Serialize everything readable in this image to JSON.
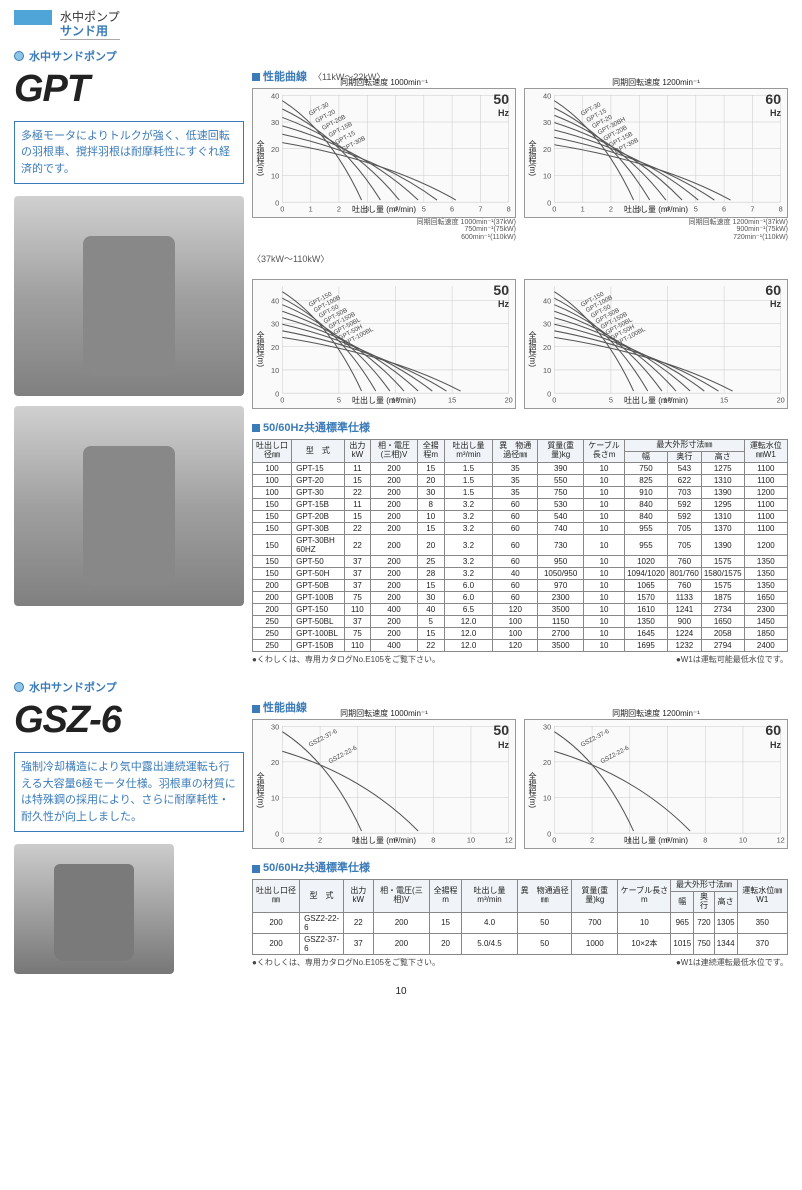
{
  "header": {
    "category": "水中ポンプ",
    "subcategory": "サンド用"
  },
  "gpt": {
    "section_title": "水中サンドポンプ",
    "name": "GPT",
    "description": "多極モータによりトルクが強く、低速回転の羽根車、撹拌羽根は耐摩耗性にすぐれ経済的です。",
    "perf_label": "性能曲線",
    "range1": "〈11kW〜22kW〉",
    "range2": "〈37kW〜110kW〉",
    "spec_label": "50/60Hz共通標準仕様",
    "charts": {
      "r1c1": {
        "freq": "50",
        "hz": "Hz",
        "note": "同期回転速度 1000min⁻¹",
        "ylabel": "全揚程(m)",
        "xlabel": "吐出し量 (m³/min)",
        "curves": [
          "GPT-30",
          "GPT-20",
          "GPT-20B",
          "GPT-15B",
          "GPT-15",
          "GPT-30B"
        ],
        "ymax": 40,
        "xmax": 8,
        "ytick": 10,
        "xtick": 1,
        "bottom_note": "同期回転速度 1000min⁻¹(37kW)\n750min⁻¹(75kW)\n600min⁻¹(110kW)"
      },
      "r1c2": {
        "freq": "60",
        "hz": "Hz",
        "note": "同期回転速度 1200min⁻¹",
        "ylabel": "全揚程(m)",
        "xlabel": "吐出し量 (m³/min)",
        "curves": [
          "GPT-30",
          "GPT-15",
          "GPT-20",
          "GPT-30BH",
          "GPT-20B",
          "GPT-15B",
          "GPT-30B"
        ],
        "ymax": 40,
        "xmax": 8,
        "ytick": 10,
        "xtick": 1,
        "bottom_note": "同期回転速度 1200min⁻¹(37kW)\n900min⁻¹(75kW)\n720min⁻¹(110kW)"
      },
      "r2c1": {
        "freq": "50",
        "hz": "Hz",
        "ylabel": "全揚程(m)",
        "xlabel": "吐出し量 (m³/min)",
        "curves": [
          "GPT-150",
          "GPT-100B",
          "GPT-50",
          "GPT-50B",
          "GPT-150B",
          "GPT-50BL",
          "GPT-50H",
          "GPT-100BL"
        ],
        "ymax": 46,
        "xmax": 20,
        "ytick": 10,
        "xtick": 5
      },
      "r2c2": {
        "freq": "60",
        "hz": "Hz",
        "ylabel": "全揚程(m)",
        "xlabel": "吐出し量 (m³/min)",
        "curves": [
          "GPT-150",
          "GPT-100B",
          "GPT-50",
          "GPT-50B",
          "GPT-150B",
          "GPT-50BL",
          "GPT-50H",
          "GPT-100BL"
        ],
        "ymax": 46,
        "xmax": 20,
        "ytick": 10,
        "xtick": 5
      }
    },
    "table": {
      "headers": [
        "吐出し口径㎜",
        "型　式",
        "出力kW",
        "相・電圧(三相)V",
        "全揚程m",
        "吐出し量m³/min",
        "異　物通過径㎜",
        "質量(重量)kg",
        "ケーブル長さm",
        "幅",
        "奥行",
        "高さ",
        "運転水位㎜W1"
      ],
      "header_group": "最大外形寸法㎜",
      "rows": [
        [
          "100",
          "GPT-15",
          "11",
          "200",
          "15",
          "1.5",
          "35",
          "390",
          "10",
          "750",
          "543",
          "1275",
          "1100"
        ],
        [
          "100",
          "GPT-20",
          "15",
          "200",
          "20",
          "1.5",
          "35",
          "550",
          "10",
          "825",
          "622",
          "1310",
          "1100"
        ],
        [
          "100",
          "GPT-30",
          "22",
          "200",
          "30",
          "1.5",
          "35",
          "750",
          "10",
          "910",
          "703",
          "1390",
          "1200"
        ],
        [
          "150",
          "GPT-15B",
          "11",
          "200",
          "8",
          "3.2",
          "60",
          "530",
          "10",
          "840",
          "592",
          "1295",
          "1100"
        ],
        [
          "150",
          "GPT-20B",
          "15",
          "200",
          "10",
          "3.2",
          "60",
          "540",
          "10",
          "840",
          "592",
          "1310",
          "1100"
        ],
        [
          "150",
          "GPT-30B",
          "22",
          "200",
          "15",
          "3.2",
          "60",
          "740",
          "10",
          "955",
          "705",
          "1370",
          "1100"
        ],
        [
          "150",
          "GPT-30BH 60HZ",
          "22",
          "200",
          "20",
          "3.2",
          "60",
          "730",
          "10",
          "955",
          "705",
          "1390",
          "1200"
        ],
        [
          "150",
          "GPT-50",
          "37",
          "200",
          "25",
          "3.2",
          "60",
          "950",
          "10",
          "1020",
          "760",
          "1575",
          "1350"
        ],
        [
          "150",
          "GPT-50H",
          "37",
          "200",
          "28",
          "3.2",
          "40",
          "1050/950",
          "10",
          "1094/1020",
          "801/760",
          "1580/1575",
          "1350"
        ],
        [
          "200",
          "GPT-50B",
          "37",
          "200",
          "15",
          "6.0",
          "60",
          "970",
          "10",
          "1065",
          "760",
          "1575",
          "1350"
        ],
        [
          "200",
          "GPT-100B",
          "75",
          "200",
          "30",
          "6.0",
          "60",
          "2300",
          "10",
          "1570",
          "1133",
          "1875",
          "1650"
        ],
        [
          "200",
          "GPT-150",
          "110",
          "400",
          "40",
          "6.5",
          "120",
          "3500",
          "10",
          "1610",
          "1241",
          "2734",
          "2300"
        ],
        [
          "250",
          "GPT-50BL",
          "37",
          "200",
          "5",
          "12.0",
          "100",
          "1150",
          "10",
          "1350",
          "900",
          "1650",
          "1450"
        ],
        [
          "250",
          "GPT-100BL",
          "75",
          "200",
          "15",
          "12.0",
          "100",
          "2700",
          "10",
          "1645",
          "1224",
          "2058",
          "1850"
        ],
        [
          "250",
          "GPT-150B",
          "110",
          "400",
          "22",
          "12.0",
          "120",
          "3500",
          "10",
          "1695",
          "1232",
          "2794",
          "2400"
        ]
      ],
      "note_left": "●くわしくは、専用カタログNo.E105をご覧下さい。",
      "note_right": "●W1は運転可能最低水位です。"
    }
  },
  "gsz": {
    "section_title": "水中サンドポンプ",
    "name": "GSZ-6",
    "description": "強制冷却構造により気中露出連続運転も行える大容量6極モータ仕様。羽根車の材質には特殊鋼の採用により、さらに耐摩耗性・耐久性が向上しました。",
    "perf_label": "性能曲線",
    "spec_label": "50/60Hz共通標準仕様",
    "charts": {
      "c1": {
        "freq": "50",
        "hz": "Hz",
        "note": "同期回転速度 1000min⁻¹",
        "ylabel": "全揚程(m)",
        "xlabel": "吐出し量 (m³/min)",
        "curves": [
          "GSZ2-37-6",
          "GSZ2-22-6"
        ],
        "ymax": 30,
        "xmax": 12,
        "ytick": 10,
        "xtick": 2
      },
      "c2": {
        "freq": "60",
        "hz": "Hz",
        "note": "同期回転速度 1200min⁻¹",
        "ylabel": "全揚程(m)",
        "xlabel": "吐出し量 (m³/min)",
        "curves": [
          "GSZ2-37-6",
          "GSZ2-22-6"
        ],
        "ymax": 30,
        "xmax": 12,
        "ytick": 10,
        "xtick": 2
      }
    },
    "table": {
      "headers": [
        "吐出し口径㎜",
        "型　式",
        "出力kW",
        "相・電圧(三相)V",
        "全揚程m",
        "吐出し量m³/min",
        "異　物通過径㎜",
        "質量(重量)kg",
        "ケーブル長さm",
        "幅",
        "奥行",
        "高さ",
        "運転水位㎜W1"
      ],
      "header_group": "最大外形寸法㎜",
      "rows": [
        [
          "200",
          "GSZ2-22-6",
          "22",
          "200",
          "15",
          "4.0",
          "50",
          "700",
          "10",
          "965",
          "720",
          "1305",
          "350"
        ],
        [
          "200",
          "GSZ2-37-6",
          "37",
          "200",
          "20",
          "5.0/4.5",
          "50",
          "1000",
          "10×2本",
          "1015",
          "750",
          "1344",
          "370"
        ]
      ],
      "note_left": "●くわしくは、専用カタログNo.E105をご覧下さい。",
      "note_right": "●W1は連続運転最低水位です。"
    }
  },
  "page_number": "10",
  "style": {
    "brand_color": "#3b7bb8",
    "accent_color": "#4fa4d8",
    "grid_color": "#cccccc",
    "curve_color": "#555555"
  }
}
